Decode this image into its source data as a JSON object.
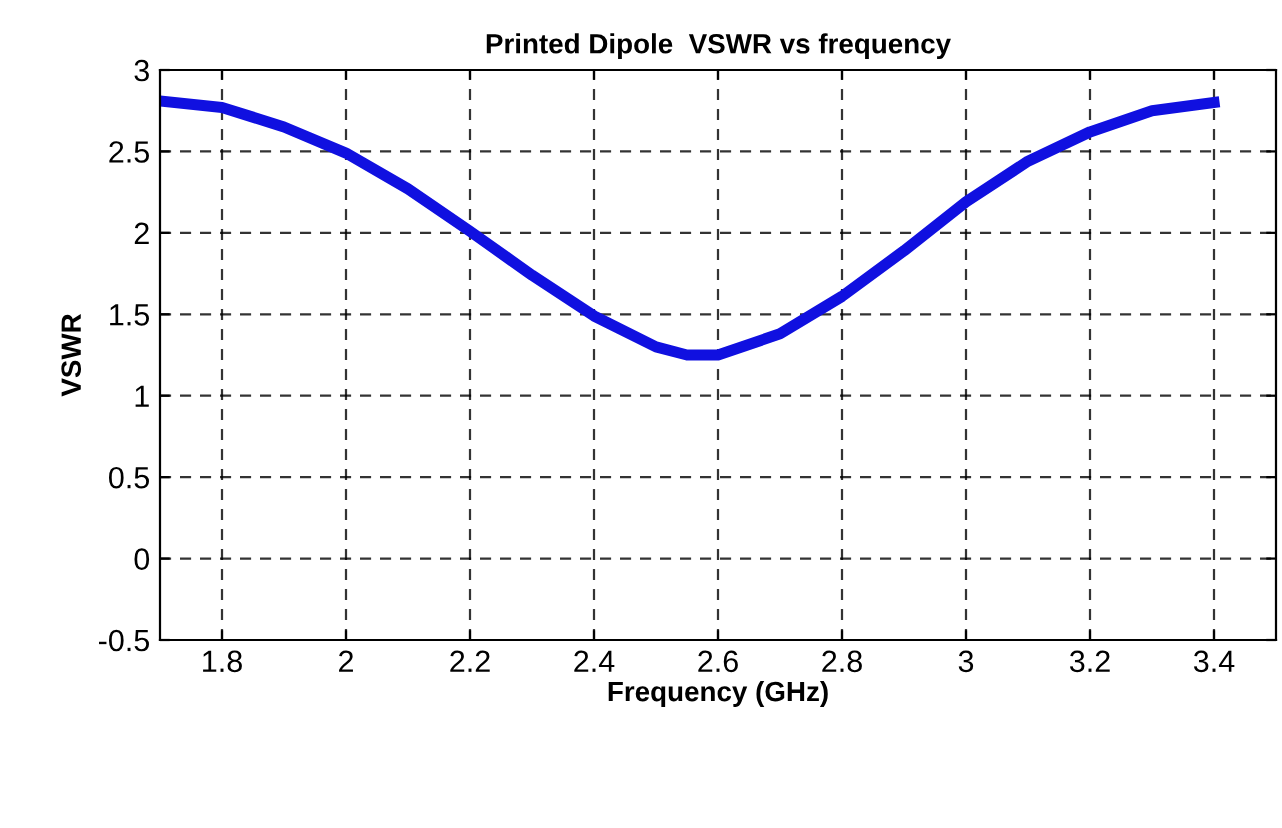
{
  "chart_data": {
    "type": "line",
    "title": "Printed Dipole  VSWR vs frequency",
    "xlabel": "Frequency (GHz)",
    "ylabel": "VSWR",
    "x": [
      1.7,
      1.8,
      1.9,
      2.0,
      2.1,
      2.2,
      2.3,
      2.4,
      2.5,
      2.55,
      2.6,
      2.7,
      2.8,
      2.9,
      3.0,
      3.1,
      3.2,
      3.3,
      3.4
    ],
    "series": [
      {
        "color": "#1010e0",
        "values": [
          2.81,
          2.77,
          2.65,
          2.49,
          2.27,
          2.01,
          1.74,
          1.49,
          1.3,
          1.25,
          1.25,
          1.38,
          1.61,
          1.89,
          2.19,
          2.44,
          2.62,
          2.75,
          2.8
        ]
      }
    ],
    "xlim": [
      1.7,
      3.5
    ],
    "xticks": [
      1.8,
      2,
      2.2,
      2.4,
      2.6,
      2.8,
      3,
      3.2,
      3.4
    ],
    "ylim": [
      -0.5,
      3
    ],
    "yticks": [
      -0.5,
      0,
      0.5,
      1,
      1.5,
      2,
      2.5,
      3
    ],
    "grid": true,
    "line_style": "solid",
    "marker": "none",
    "legend": false
  }
}
